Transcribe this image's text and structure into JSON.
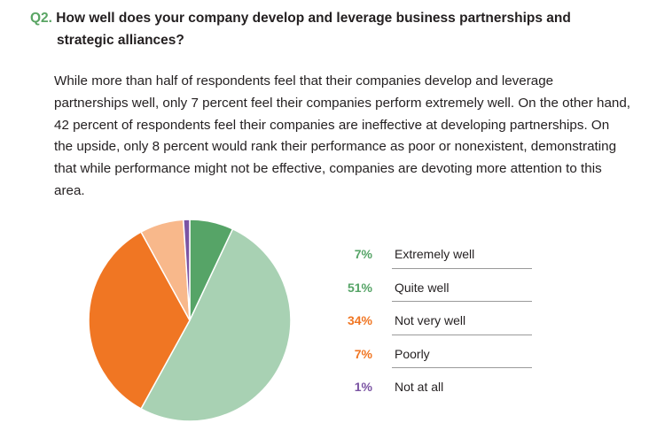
{
  "question": {
    "number": "Q2.",
    "line1": "How well does your company develop and leverage business partnerships and",
    "line2": "strategic alliances?"
  },
  "paragraph": "While more than half of respondents feel that their companies develop and leverage partnerships well, only 7 percent feel their companies perform extremely well. On the other hand, 42 percent of respondents feel their companies are ineffective at developing partnerships. On the upside, only 8 percent would rank their performance as poor or nonexistent, demonstrating that while performance might not be effective, companies are devoting more attention to this area.",
  "chart_data": {
    "type": "pie",
    "title": "",
    "categories": [
      "Extremely well",
      "Quite well",
      "Not very well",
      "Poorly",
      "Not at all"
    ],
    "values": [
      7,
      51,
      34,
      7,
      1
    ],
    "value_labels": [
      "7%",
      "51%",
      "34%",
      "7%",
      "1%"
    ],
    "colors": [
      "#56a467",
      "#a8d1b3",
      "#f07623",
      "#f8b88b",
      "#7b54a3"
    ],
    "label_colors": [
      "#56a467",
      "#56a467",
      "#f07623",
      "#f07623",
      "#7b54a3"
    ],
    "start_angle_deg": 0,
    "direction": "clockwise",
    "legend_position": "right"
  }
}
